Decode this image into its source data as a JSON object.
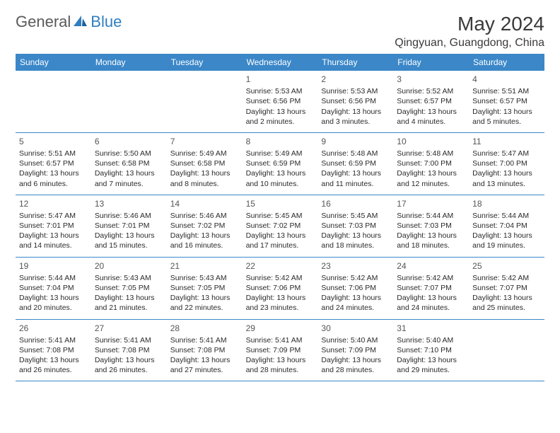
{
  "logo": {
    "text1": "General",
    "text2": "Blue"
  },
  "title": "May 2024",
  "location": "Qingyuan, Guangdong, China",
  "colors": {
    "header_bg": "#3b87c8",
    "header_text": "#ffffff",
    "logo_gray": "#5a5a5a",
    "logo_blue": "#2f7fc2",
    "body_text": "#2a2a2a",
    "rule": "#3b87c8"
  },
  "weekdays": [
    "Sunday",
    "Monday",
    "Tuesday",
    "Wednesday",
    "Thursday",
    "Friday",
    "Saturday"
  ],
  "weeks": [
    [
      null,
      null,
      null,
      {
        "n": "1",
        "sr": "Sunrise: 5:53 AM",
        "ss": "Sunset: 6:56 PM",
        "d1": "Daylight: 13 hours",
        "d2": "and 2 minutes."
      },
      {
        "n": "2",
        "sr": "Sunrise: 5:53 AM",
        "ss": "Sunset: 6:56 PM",
        "d1": "Daylight: 13 hours",
        "d2": "and 3 minutes."
      },
      {
        "n": "3",
        "sr": "Sunrise: 5:52 AM",
        "ss": "Sunset: 6:57 PM",
        "d1": "Daylight: 13 hours",
        "d2": "and 4 minutes."
      },
      {
        "n": "4",
        "sr": "Sunrise: 5:51 AM",
        "ss": "Sunset: 6:57 PM",
        "d1": "Daylight: 13 hours",
        "d2": "and 5 minutes."
      }
    ],
    [
      {
        "n": "5",
        "sr": "Sunrise: 5:51 AM",
        "ss": "Sunset: 6:57 PM",
        "d1": "Daylight: 13 hours",
        "d2": "and 6 minutes."
      },
      {
        "n": "6",
        "sr": "Sunrise: 5:50 AM",
        "ss": "Sunset: 6:58 PM",
        "d1": "Daylight: 13 hours",
        "d2": "and 7 minutes."
      },
      {
        "n": "7",
        "sr": "Sunrise: 5:49 AM",
        "ss": "Sunset: 6:58 PM",
        "d1": "Daylight: 13 hours",
        "d2": "and 8 minutes."
      },
      {
        "n": "8",
        "sr": "Sunrise: 5:49 AM",
        "ss": "Sunset: 6:59 PM",
        "d1": "Daylight: 13 hours",
        "d2": "and 10 minutes."
      },
      {
        "n": "9",
        "sr": "Sunrise: 5:48 AM",
        "ss": "Sunset: 6:59 PM",
        "d1": "Daylight: 13 hours",
        "d2": "and 11 minutes."
      },
      {
        "n": "10",
        "sr": "Sunrise: 5:48 AM",
        "ss": "Sunset: 7:00 PM",
        "d1": "Daylight: 13 hours",
        "d2": "and 12 minutes."
      },
      {
        "n": "11",
        "sr": "Sunrise: 5:47 AM",
        "ss": "Sunset: 7:00 PM",
        "d1": "Daylight: 13 hours",
        "d2": "and 13 minutes."
      }
    ],
    [
      {
        "n": "12",
        "sr": "Sunrise: 5:47 AM",
        "ss": "Sunset: 7:01 PM",
        "d1": "Daylight: 13 hours",
        "d2": "and 14 minutes."
      },
      {
        "n": "13",
        "sr": "Sunrise: 5:46 AM",
        "ss": "Sunset: 7:01 PM",
        "d1": "Daylight: 13 hours",
        "d2": "and 15 minutes."
      },
      {
        "n": "14",
        "sr": "Sunrise: 5:46 AM",
        "ss": "Sunset: 7:02 PM",
        "d1": "Daylight: 13 hours",
        "d2": "and 16 minutes."
      },
      {
        "n": "15",
        "sr": "Sunrise: 5:45 AM",
        "ss": "Sunset: 7:02 PM",
        "d1": "Daylight: 13 hours",
        "d2": "and 17 minutes."
      },
      {
        "n": "16",
        "sr": "Sunrise: 5:45 AM",
        "ss": "Sunset: 7:03 PM",
        "d1": "Daylight: 13 hours",
        "d2": "and 18 minutes."
      },
      {
        "n": "17",
        "sr": "Sunrise: 5:44 AM",
        "ss": "Sunset: 7:03 PM",
        "d1": "Daylight: 13 hours",
        "d2": "and 18 minutes."
      },
      {
        "n": "18",
        "sr": "Sunrise: 5:44 AM",
        "ss": "Sunset: 7:04 PM",
        "d1": "Daylight: 13 hours",
        "d2": "and 19 minutes."
      }
    ],
    [
      {
        "n": "19",
        "sr": "Sunrise: 5:44 AM",
        "ss": "Sunset: 7:04 PM",
        "d1": "Daylight: 13 hours",
        "d2": "and 20 minutes."
      },
      {
        "n": "20",
        "sr": "Sunrise: 5:43 AM",
        "ss": "Sunset: 7:05 PM",
        "d1": "Daylight: 13 hours",
        "d2": "and 21 minutes."
      },
      {
        "n": "21",
        "sr": "Sunrise: 5:43 AM",
        "ss": "Sunset: 7:05 PM",
        "d1": "Daylight: 13 hours",
        "d2": "and 22 minutes."
      },
      {
        "n": "22",
        "sr": "Sunrise: 5:42 AM",
        "ss": "Sunset: 7:06 PM",
        "d1": "Daylight: 13 hours",
        "d2": "and 23 minutes."
      },
      {
        "n": "23",
        "sr": "Sunrise: 5:42 AM",
        "ss": "Sunset: 7:06 PM",
        "d1": "Daylight: 13 hours",
        "d2": "and 24 minutes."
      },
      {
        "n": "24",
        "sr": "Sunrise: 5:42 AM",
        "ss": "Sunset: 7:07 PM",
        "d1": "Daylight: 13 hours",
        "d2": "and 24 minutes."
      },
      {
        "n": "25",
        "sr": "Sunrise: 5:42 AM",
        "ss": "Sunset: 7:07 PM",
        "d1": "Daylight: 13 hours",
        "d2": "and 25 minutes."
      }
    ],
    [
      {
        "n": "26",
        "sr": "Sunrise: 5:41 AM",
        "ss": "Sunset: 7:08 PM",
        "d1": "Daylight: 13 hours",
        "d2": "and 26 minutes."
      },
      {
        "n": "27",
        "sr": "Sunrise: 5:41 AM",
        "ss": "Sunset: 7:08 PM",
        "d1": "Daylight: 13 hours",
        "d2": "and 26 minutes."
      },
      {
        "n": "28",
        "sr": "Sunrise: 5:41 AM",
        "ss": "Sunset: 7:08 PM",
        "d1": "Daylight: 13 hours",
        "d2": "and 27 minutes."
      },
      {
        "n": "29",
        "sr": "Sunrise: 5:41 AM",
        "ss": "Sunset: 7:09 PM",
        "d1": "Daylight: 13 hours",
        "d2": "and 28 minutes."
      },
      {
        "n": "30",
        "sr": "Sunrise: 5:40 AM",
        "ss": "Sunset: 7:09 PM",
        "d1": "Daylight: 13 hours",
        "d2": "and 28 minutes."
      },
      {
        "n": "31",
        "sr": "Sunrise: 5:40 AM",
        "ss": "Sunset: 7:10 PM",
        "d1": "Daylight: 13 hours",
        "d2": "and 29 minutes."
      },
      null
    ]
  ]
}
